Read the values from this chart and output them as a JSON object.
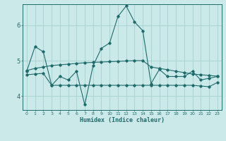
{
  "xlabel": "Humidex (Indice chaleur)",
  "x_ticks": [
    0,
    1,
    2,
    3,
    4,
    5,
    6,
    7,
    8,
    9,
    10,
    11,
    12,
    13,
    14,
    15,
    16,
    17,
    18,
    19,
    20,
    21,
    22,
    23
  ],
  "ylim": [
    3.6,
    6.6
  ],
  "yticks": [
    4,
    5,
    6
  ],
  "background_color": "#cce9ea",
  "grid_color": "#aad4d5",
  "line_color": "#1e6b6b",
  "series": [
    {
      "x": [
        0,
        1,
        2,
        3,
        4,
        5,
        6,
        7,
        8,
        9,
        10,
        11,
        12,
        13,
        14,
        15,
        16,
        17,
        18,
        19,
        20,
        21,
        22,
        23
      ],
      "y": [
        4.7,
        5.4,
        5.25,
        4.3,
        4.55,
        4.45,
        4.7,
        3.75,
        4.85,
        5.35,
        5.5,
        6.25,
        6.55,
        6.1,
        5.85,
        4.35,
        4.75,
        4.55,
        4.55,
        4.55,
        4.7,
        4.45,
        4.5,
        4.55
      ]
    },
    {
      "x": [
        0,
        1,
        2,
        3,
        4,
        5,
        6,
        7,
        8,
        9,
        10,
        11,
        12,
        13,
        14,
        15,
        16,
        17,
        18,
        19,
        20,
        21,
        22,
        23
      ],
      "y": [
        4.72,
        4.78,
        4.82,
        4.86,
        4.88,
        4.9,
        4.92,
        4.94,
        4.95,
        4.96,
        4.97,
        4.98,
        4.99,
        5.0,
        5.0,
        4.82,
        4.78,
        4.74,
        4.7,
        4.66,
        4.62,
        4.6,
        4.58,
        4.56
      ]
    },
    {
      "x": [
        0,
        1,
        2,
        3,
        4,
        5,
        6,
        7,
        8,
        9,
        10,
        11,
        12,
        13,
        14,
        15,
        16,
        17,
        18,
        19,
        20,
        21,
        22,
        23
      ],
      "y": [
        4.6,
        4.62,
        4.64,
        4.3,
        4.3,
        4.3,
        4.3,
        4.3,
        4.3,
        4.3,
        4.3,
        4.3,
        4.3,
        4.3,
        4.3,
        4.3,
        4.3,
        4.3,
        4.3,
        4.3,
        4.3,
        4.28,
        4.26,
        4.38
      ]
    }
  ]
}
